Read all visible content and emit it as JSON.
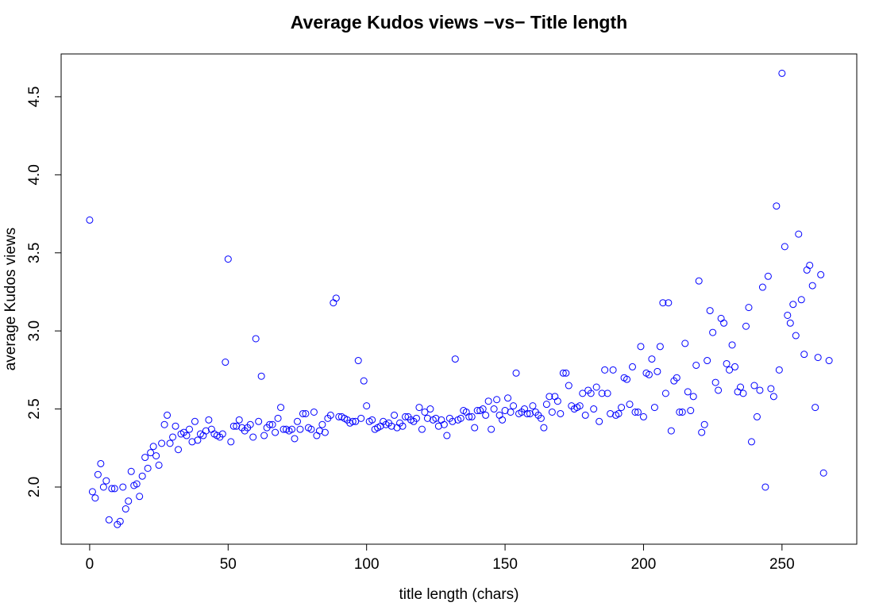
{
  "chart_data": {
    "type": "scatter",
    "title": "Average Kudos views −vs− Title length",
    "x_label": "title length (chars)",
    "y_label": "average Kudos views",
    "color": "#0000ff",
    "xlim": [
      -10.3,
      277
    ],
    "ylim": [
      1.634,
      4.774
    ],
    "xticks": [
      0,
      50,
      100,
      150,
      200,
      250
    ],
    "yticks": [
      {
        "value": 2,
        "label": "2.0"
      },
      {
        "value": 2.5,
        "label": "2.5"
      },
      {
        "value": 3,
        "label": "3.0"
      },
      {
        "value": 3.5,
        "label": "3.5"
      },
      {
        "value": 4,
        "label": "4.0"
      },
      {
        "value": 4.5,
        "label": "4.5"
      }
    ],
    "x": [
      0,
      1,
      2,
      3,
      4,
      5,
      6,
      7,
      8,
      9,
      10,
      11,
      12,
      13,
      14,
      15,
      16,
      17,
      18,
      19,
      20,
      21,
      22,
      23,
      24,
      25,
      26,
      27,
      28,
      29,
      30,
      31,
      32,
      33,
      34,
      35,
      36,
      37,
      38,
      39,
      40,
      41,
      42,
      43,
      44,
      45,
      46,
      47,
      48,
      49,
      50,
      51,
      52,
      53,
      54,
      55,
      56,
      57,
      58,
      59,
      60,
      61,
      62,
      63,
      64,
      65,
      66,
      67,
      68,
      69,
      70,
      71,
      72,
      73,
      74,
      75,
      76,
      77,
      78,
      79,
      80,
      81,
      82,
      83,
      84,
      85,
      86,
      87,
      88,
      89,
      90,
      91,
      92,
      93,
      94,
      95,
      96,
      97,
      98,
      99,
      100,
      101,
      102,
      103,
      104,
      105,
      106,
      107,
      108,
      109,
      110,
      111,
      112,
      113,
      114,
      115,
      116,
      117,
      118,
      119,
      120,
      121,
      122,
      123,
      124,
      125,
      126,
      127,
      128,
      129,
      130,
      131,
      132,
      133,
      134,
      135,
      136,
      137,
      138,
      139,
      140,
      141,
      142,
      143,
      144,
      145,
      146,
      147,
      148,
      149,
      150,
      151,
      152,
      153,
      154,
      155,
      156,
      157,
      158,
      159,
      160,
      161,
      162,
      163,
      164,
      165,
      166,
      167,
      168,
      169,
      170,
      171,
      172,
      173,
      174,
      175,
      176,
      177,
      178,
      179,
      180,
      181,
      182,
      183,
      184,
      185,
      186,
      187,
      188,
      189,
      190,
      191,
      192,
      193,
      194,
      195,
      196,
      197,
      198,
      199,
      200,
      201,
      202,
      203,
      204,
      205,
      206,
      207,
      208,
      209,
      210,
      211,
      212,
      213,
      214,
      215,
      216,
      217,
      218,
      219,
      220,
      221,
      222,
      223,
      224,
      225,
      226,
      227,
      228,
      229,
      230,
      231,
      232,
      233,
      234,
      235,
      236,
      237,
      238,
      239,
      240,
      241,
      242,
      243,
      244,
      245,
      246,
      247,
      248,
      249,
      250,
      251,
      252,
      253,
      254,
      255,
      256,
      257,
      258,
      259,
      260,
      261,
      262,
      263,
      264,
      265,
      267
    ],
    "y": [
      3.71,
      1.97,
      1.93,
      2.08,
      2.15,
      2.0,
      2.04,
      1.79,
      1.99,
      1.99,
      1.76,
      1.78,
      2.0,
      1.86,
      1.91,
      2.1,
      2.01,
      2.02,
      1.94,
      2.07,
      2.19,
      2.12,
      2.22,
      2.26,
      2.2,
      2.14,
      2.28,
      2.4,
      2.46,
      2.28,
      2.32,
      2.39,
      2.24,
      2.34,
      2.35,
      2.33,
      2.37,
      2.29,
      2.42,
      2.3,
      2.34,
      2.33,
      2.36,
      2.43,
      2.37,
      2.34,
      2.33,
      2.32,
      2.34,
      2.8,
      3.46,
      2.29,
      2.39,
      2.39,
      2.43,
      2.38,
      2.36,
      2.38,
      2.4,
      2.32,
      2.95,
      2.42,
      2.71,
      2.33,
      2.38,
      2.4,
      2.4,
      2.35,
      2.44,
      2.51,
      2.37,
      2.37,
      2.36,
      2.37,
      2.31,
      2.42,
      2.37,
      2.47,
      2.47,
      2.38,
      2.37,
      2.48,
      2.33,
      2.36,
      2.4,
      2.35,
      2.44,
      2.46,
      3.18,
      3.21,
      2.45,
      2.45,
      2.44,
      2.43,
      2.41,
      2.42,
      2.42,
      2.81,
      2.44,
      2.68,
      2.52,
      2.42,
      2.43,
      2.37,
      2.38,
      2.39,
      2.42,
      2.4,
      2.41,
      2.39,
      2.46,
      2.38,
      2.41,
      2.39,
      2.45,
      2.45,
      2.43,
      2.42,
      2.44,
      2.51,
      2.37,
      2.48,
      2.44,
      2.5,
      2.43,
      2.44,
      2.39,
      2.43,
      2.4,
      2.33,
      2.44,
      2.42,
      2.82,
      2.43,
      2.44,
      2.49,
      2.48,
      2.45,
      2.45,
      2.38,
      2.49,
      2.49,
      2.5,
      2.46,
      2.55,
      2.37,
      2.5,
      2.56,
      2.46,
      2.43,
      2.49,
      2.57,
      2.48,
      2.52,
      2.73,
      2.47,
      2.48,
      2.5,
      2.47,
      2.47,
      2.52,
      2.48,
      2.46,
      2.44,
      2.38,
      2.53,
      2.58,
      2.48,
      2.58,
      2.55,
      2.47,
      2.73,
      2.73,
      2.65,
      2.52,
      2.5,
      2.51,
      2.52,
      2.6,
      2.46,
      2.62,
      2.6,
      2.5,
      2.64,
      2.42,
      2.6,
      2.75,
      2.6,
      2.47,
      2.75,
      2.46,
      2.47,
      2.51,
      2.7,
      2.69,
      2.53,
      2.77,
      2.48,
      2.48,
      2.9,
      2.45,
      2.73,
      2.72,
      2.82,
      2.51,
      2.74,
      2.9,
      3.18,
      2.6,
      3.18,
      2.36,
      2.68,
      2.7,
      2.48,
      2.48,
      2.92,
      2.61,
      2.49,
      2.58,
      2.78,
      3.32,
      2.35,
      2.4,
      2.81,
      3.13,
      2.99,
      2.67,
      2.62,
      3.08,
      3.05,
      2.79,
      2.75,
      2.91,
      2.77,
      2.61,
      2.64,
      2.6,
      3.03,
      3.15,
      2.29,
      2.65,
      2.45,
      2.62,
      3.28,
      2.0,
      3.35,
      2.63,
      2.58,
      3.8,
      2.75,
      4.65,
      3.54,
      3.1,
      3.05,
      3.17,
      2.97,
      3.62,
      3.2,
      2.85,
      3.39,
      3.42,
      3.29,
      2.51,
      2.83,
      3.36,
      2.09,
      2.81
    ]
  }
}
